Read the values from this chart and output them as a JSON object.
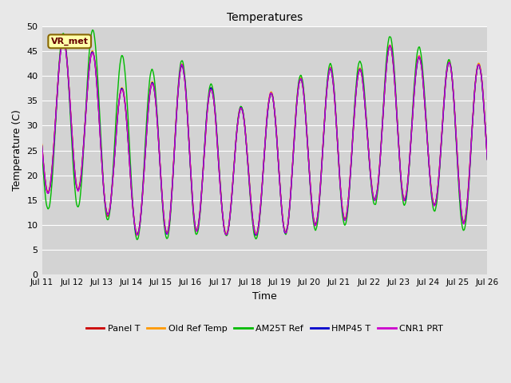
{
  "title": "Temperatures",
  "xlabel": "Time",
  "ylabel": "Temperature (C)",
  "ylim": [
    0,
    50
  ],
  "yticks": [
    0,
    5,
    10,
    15,
    20,
    25,
    30,
    35,
    40,
    45,
    50
  ],
  "x_labels": [
    "Jul 11",
    "Jul 12",
    "Jul 13",
    "Jul 14",
    "Jul 15",
    "Jul 16",
    "Jul 17",
    "Jul 18",
    "Jul 19",
    "Jul 20",
    "Jul 21",
    "Jul 22",
    "Jul 23",
    "Jul 24",
    "Jul 25",
    "Jul 26"
  ],
  "annotation_text": "VR_met",
  "bg_color": "#e8e8e8",
  "plot_bg_color": "#d3d3d3",
  "colors": {
    "Panel T": "#cc0000",
    "Old Ref Temp": "#ff9900",
    "AM25T Ref": "#00bb00",
    "HMP45 T": "#0000cc",
    "CNR1 PRT": "#cc00cc"
  },
  "linewidth": 1.0,
  "n_days": 15,
  "start_day": 11,
  "end_day": 26
}
